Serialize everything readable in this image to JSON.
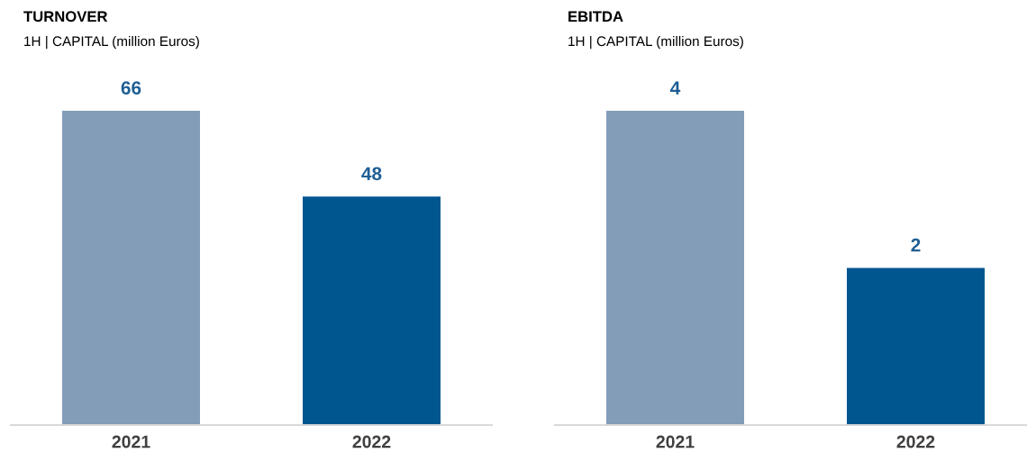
{
  "chart_data": [
    {
      "type": "bar",
      "title": "TURNOVER",
      "subtitle": "1H | CAPITAL (million Euros)",
      "categories": [
        "2021",
        "2022"
      ],
      "values": [
        66,
        48
      ],
      "colors": [
        "#839db9",
        "#00568f"
      ],
      "data_labels": true,
      "grid": false,
      "legend": false,
      "tick_labels": "x"
    },
    {
      "type": "bar",
      "title": "EBITDA",
      "subtitle": "1H | CAPITAL (million Euros)",
      "categories": [
        "2021",
        "2022"
      ],
      "values": [
        4,
        2
      ],
      "colors": [
        "#839db9",
        "#00568f"
      ],
      "data_labels": true,
      "grid": false,
      "legend": false,
      "tick_labels": "x"
    }
  ]
}
